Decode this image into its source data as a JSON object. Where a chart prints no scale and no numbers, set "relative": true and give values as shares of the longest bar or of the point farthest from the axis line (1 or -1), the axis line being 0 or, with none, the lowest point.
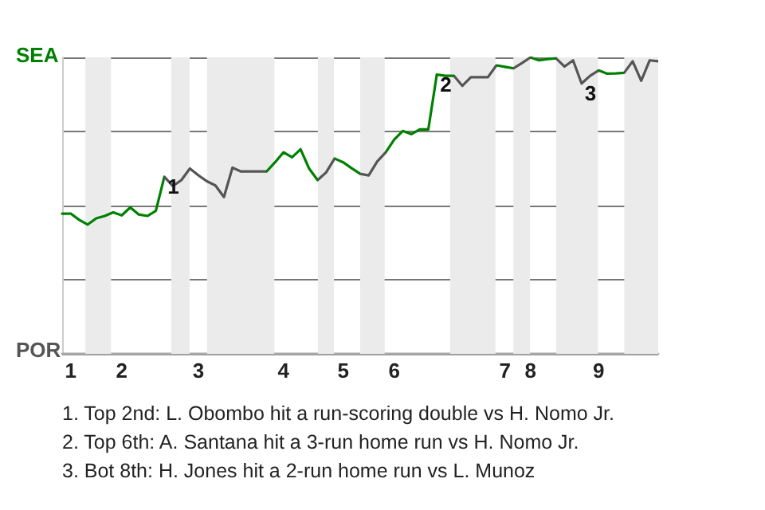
{
  "chart_data": {
    "type": "line",
    "relative": true,
    "categories": [
      null,
      "1",
      null,
      null,
      null,
      null,
      null,
      "2",
      null,
      null,
      null,
      null,
      null,
      null,
      null,
      null,
      "3",
      null,
      null,
      null,
      null,
      null,
      null,
      null,
      null,
      null,
      "4",
      null,
      null,
      null,
      null,
      null,
      null,
      "5",
      null,
      null,
      null,
      null,
      null,
      "6",
      null,
      null,
      null,
      null,
      null,
      null,
      null,
      null,
      null,
      null,
      null,
      null,
      "7",
      null,
      null,
      "8",
      null,
      null,
      null,
      null,
      null,
      null,
      null,
      "9",
      null,
      null,
      null,
      null,
      null,
      null,
      null
    ],
    "grid": "y",
    "marker": "none",
    "line_style": "solid",
    "series": [
      {
        "values": [
          0.473,
          0.473,
          0.452,
          0.436,
          0.457,
          0.465,
          0.477,
          0.467,
          0.494,
          0.47,
          0.465,
          0.482,
          0.597,
          0.566,
          0.586,
          0.625,
          0.602,
          0.582,
          0.568,
          0.529,
          0.628,
          0.615,
          0.615,
          0.615,
          0.615,
          0.646,
          0.68,
          0.663,
          0.69,
          0.625,
          0.586,
          0.612,
          0.659,
          0.646,
          0.626,
          0.607,
          0.602,
          0.649,
          0.68,
          0.723,
          0.752,
          0.741,
          0.757,
          0.757,
          0.942,
          0.938,
          0.938,
          0.904,
          0.933,
          0.933,
          0.933,
          0.973,
          0.968,
          0.963,
          0.981,
          1,
          0.99,
          0.994,
          0.997,
          0.969,
          0.99,
          0.912,
          0.938,
          0.956,
          0.945,
          0.946,
          0.948,
          0.987,
          0.921,
          0.99,
          0.987
        ],
        "colors": [
          "#008000",
          "#008000",
          "#008000",
          "#008000",
          "#008000",
          "#008000",
          "#008000",
          "#008000",
          "#008000",
          "#008000",
          "#008000",
          "#008000",
          "#008000",
          "#555555",
          "#555555",
          "#555555",
          "#555555",
          "#555555",
          "#555555",
          "#555555",
          "#555555",
          "#555555",
          "#555555",
          "#555555",
          "#555555",
          "#008000",
          "#008000",
          "#008000",
          "#008000",
          "#008000",
          "#008000",
          "#555555",
          "#555555",
          "#008000",
          "#008000",
          "#008000",
          "#555555",
          "#555555",
          "#555555",
          "#008000",
          "#008000",
          "#008000",
          "#008000",
          "#008000",
          "#008000",
          "#008000",
          "#008000",
          "#555555",
          "#555555",
          "#555555",
          "#555555",
          "#555555",
          "#008000",
          "#008000",
          "#555555",
          "#555555",
          "#008000",
          "#008000",
          "#008000",
          "#555555",
          "#555555",
          "#555555",
          "#555555",
          "#555555",
          "#008000",
          "#008000",
          "#008000",
          "#555555",
          "#555555",
          "#555555",
          "#555555"
        ]
      }
    ],
    "annotations": [
      "SEA",
      "POR",
      {
        "text": "1",
        "y": 0.597
      },
      {
        "text": "2",
        "y": 0.942
      },
      {
        "text": "3",
        "y": 0.912
      },
      "1. Top 2nd: L. Obombo hit a run-scoring double vs H. Nomo Jr.",
      "2. Top 6th: A. Santana hit a 3-run home run vs H. Nomo Jr.",
      "3. Bot 8th: H. Jones hit a 2-run home run vs L. Munoz"
    ]
  }
}
